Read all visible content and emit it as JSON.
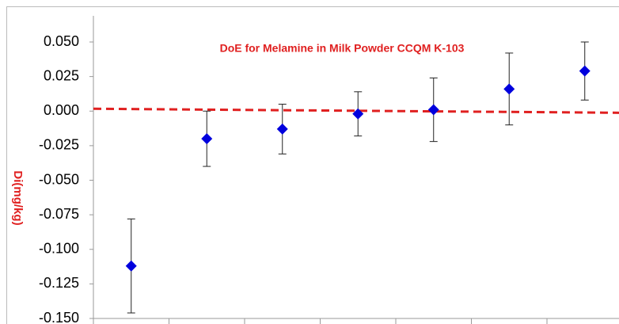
{
  "chart_data": {
    "type": "errorbar",
    "title": "DoE  for Melamine in Milk Powder CCQM K-103",
    "y_label": "Di(mg/kg)",
    "categories": [
      null,
      null,
      null,
      null,
      null,
      null,
      null
    ],
    "series": [
      {
        "color": "#0000dd",
        "values": [
          -0.112,
          -0.02,
          -0.013,
          -0.002,
          0.001,
          0.016,
          0.029
        ],
        "errors": [
          0.034,
          0.02,
          0.018,
          0.016,
          0.023,
          0.026,
          0.021
        ]
      }
    ],
    "reference_line": {
      "color": "#e02020",
      "dashed": true,
      "values": [
        0.0017,
        -0.0012
      ]
    },
    "ylim": [
      -0.15,
      0.05
    ],
    "yticks": [
      {
        "value": -0.15,
        "label": "-0.150"
      },
      {
        "value": -0.125,
        "label": "-0.125"
      },
      {
        "value": -0.1,
        "label": "-0.100"
      },
      {
        "value": -0.075,
        "label": "-0.075"
      },
      {
        "value": -0.05,
        "label": "-0.050"
      },
      {
        "value": -0.025,
        "label": "-0.025"
      },
      {
        "value": 0,
        "label": "0.000"
      },
      {
        "value": 0.025,
        "label": "0.025"
      },
      {
        "value": 0.05,
        "label": "0.050"
      }
    ],
    "title_color": "#e02020"
  }
}
